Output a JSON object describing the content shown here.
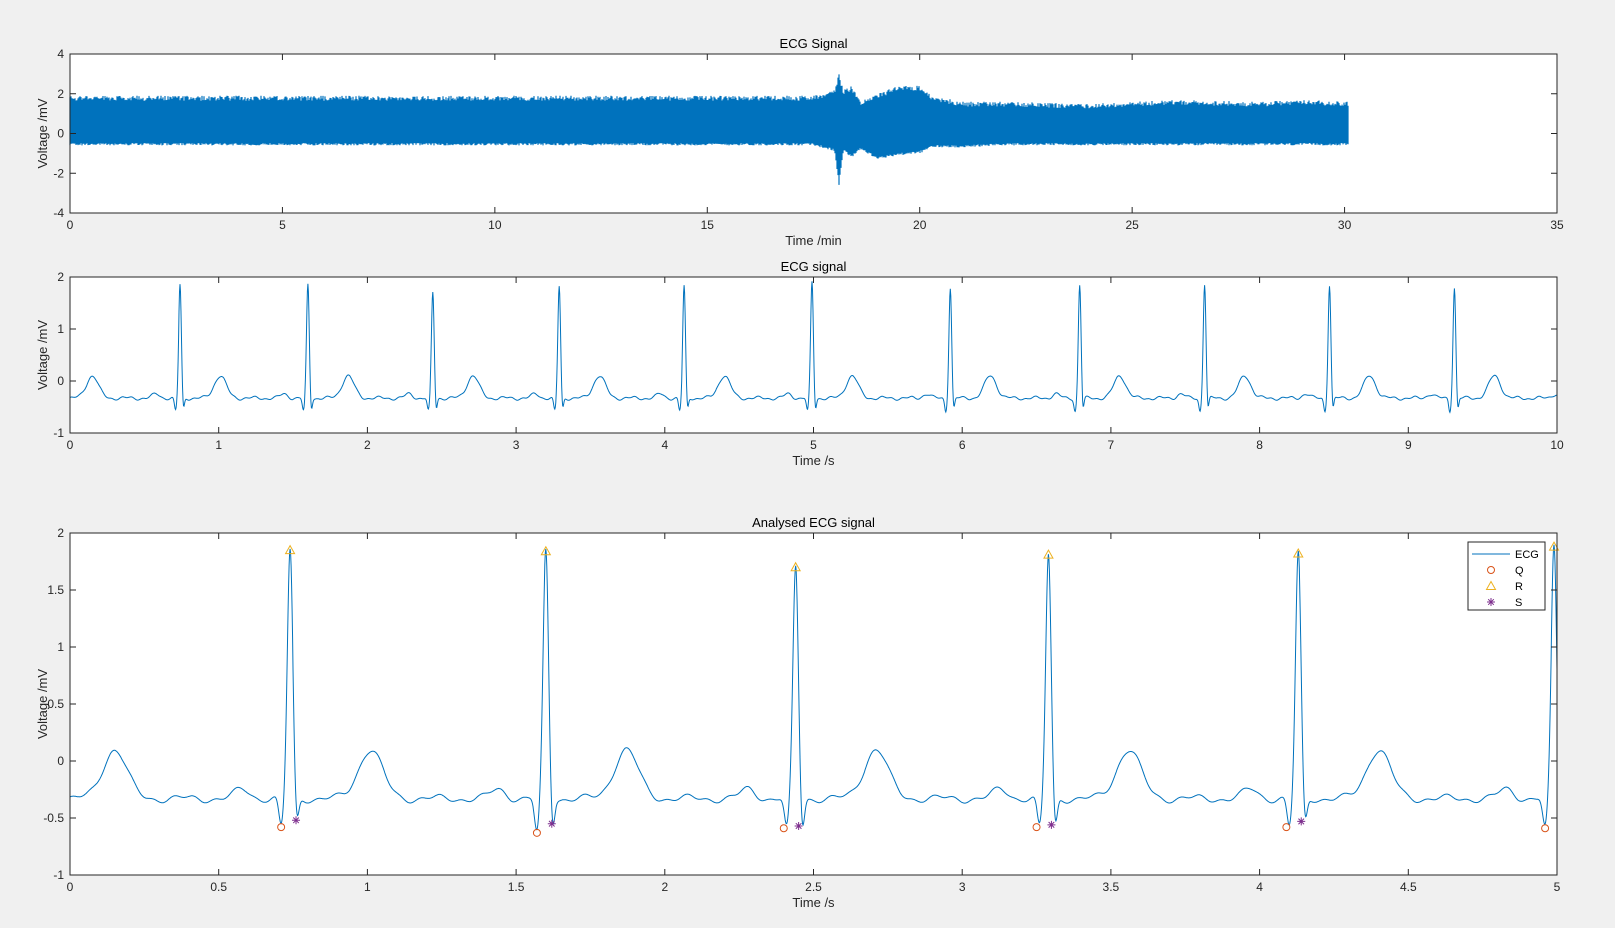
{
  "figure": {
    "background": "#f0f0f0",
    "line_color": "#0072bd"
  },
  "chart_data": [
    {
      "id": "p1",
      "type": "line",
      "title": "ECG Signal",
      "xlabel": "Time /min",
      "ylabel": "Voltage /mV",
      "xlim": [
        0,
        35
      ],
      "ylim": [
        -4,
        4
      ],
      "xticks": [
        0,
        5,
        10,
        15,
        20,
        25,
        30,
        35
      ],
      "yticks": [
        -4,
        -2,
        0,
        2,
        4
      ],
      "series": [
        {
          "color": "#0072bd",
          "envelope": {
            "x": [
              0,
              2,
              4,
              6,
              8,
              10,
              12,
              14,
              16,
              17.5,
              18,
              18.1,
              18.2,
              18.4,
              18.6,
              19,
              19.5,
              20,
              20.3,
              21,
              22,
              24,
              26,
              28,
              29,
              30.1
            ],
            "upper": [
              1.9,
              1.9,
              1.9,
              1.9,
              1.9,
              1.9,
              1.9,
              1.9,
              1.9,
              1.9,
              2.2,
              3.0,
              2.2,
              2.4,
              1.6,
              2.0,
              2.4,
              2.4,
              1.9,
              1.6,
              1.6,
              1.5,
              1.7,
              1.6,
              1.7,
              1.6
            ],
            "lower": [
              -0.6,
              -0.6,
              -0.6,
              -0.6,
              -0.6,
              -0.6,
              -0.6,
              -0.6,
              -0.6,
              -0.6,
              -0.9,
              -2.6,
              -0.9,
              -1.2,
              -0.8,
              -1.3,
              -1.1,
              -1.0,
              -0.7,
              -0.7,
              -0.6,
              -0.6,
              -0.6,
              -0.6,
              -0.6,
              -0.6
            ]
          }
        }
      ]
    },
    {
      "id": "p2",
      "type": "line",
      "title": "ECG signal",
      "xlabel": "Time /s",
      "ylabel": "Voltage /mV",
      "xlim": [
        0,
        10
      ],
      "ylim": [
        -1,
        2
      ],
      "xticks": [
        0,
        1,
        2,
        3,
        4,
        5,
        6,
        7,
        8,
        9,
        10
      ],
      "yticks": [
        -1,
        0,
        1,
        2
      ],
      "series": [
        {
          "color": "#0072bd",
          "r_peaks_x": [
            0.74,
            1.6,
            2.44,
            3.29,
            4.13,
            4.99,
            5.92,
            6.79,
            7.63,
            8.47,
            9.31
          ],
          "r_peaks_y": [
            1.85,
            1.85,
            1.7,
            1.82,
            1.82,
            1.9,
            1.8,
            1.85,
            1.87,
            1.85,
            1.8
          ]
        }
      ]
    },
    {
      "id": "p3",
      "type": "line",
      "title": "Analysed  ECG signal",
      "xlabel": "Time /s",
      "ylabel": "Voltage /mV",
      "xlim": [
        0,
        5
      ],
      "ylim": [
        -1,
        2
      ],
      "xticks": [
        0,
        0.5,
        1,
        1.5,
        2,
        2.5,
        3,
        3.5,
        4,
        4.5,
        5
      ],
      "yticks": [
        -1,
        -0.5,
        0,
        0.5,
        1,
        1.5,
        2
      ],
      "legend_position": "top-right",
      "series": [
        {
          "name": "ECG",
          "color": "#0072bd",
          "marker": "line"
        },
        {
          "name": "Q",
          "color": "#d95319",
          "marker": "circle",
          "x": [
            0.71,
            1.57,
            2.4,
            3.25,
            4.09,
            4.96
          ],
          "y": [
            -0.58,
            -0.63,
            -0.59,
            -0.58,
            -0.58,
            -0.59
          ]
        },
        {
          "name": "R",
          "color": "#edb120",
          "marker": "triangle",
          "x": [
            0.74,
            1.6,
            2.44,
            3.29,
            4.13,
            4.99
          ],
          "y": [
            1.85,
            1.84,
            1.7,
            1.81,
            1.82,
            1.88
          ]
        },
        {
          "name": "S",
          "color": "#7e2f8e",
          "marker": "asterisk",
          "x": [
            0.76,
            1.62,
            2.45,
            3.3,
            4.14
          ],
          "y": [
            -0.52,
            -0.55,
            -0.57,
            -0.56,
            -0.53
          ]
        }
      ]
    }
  ]
}
